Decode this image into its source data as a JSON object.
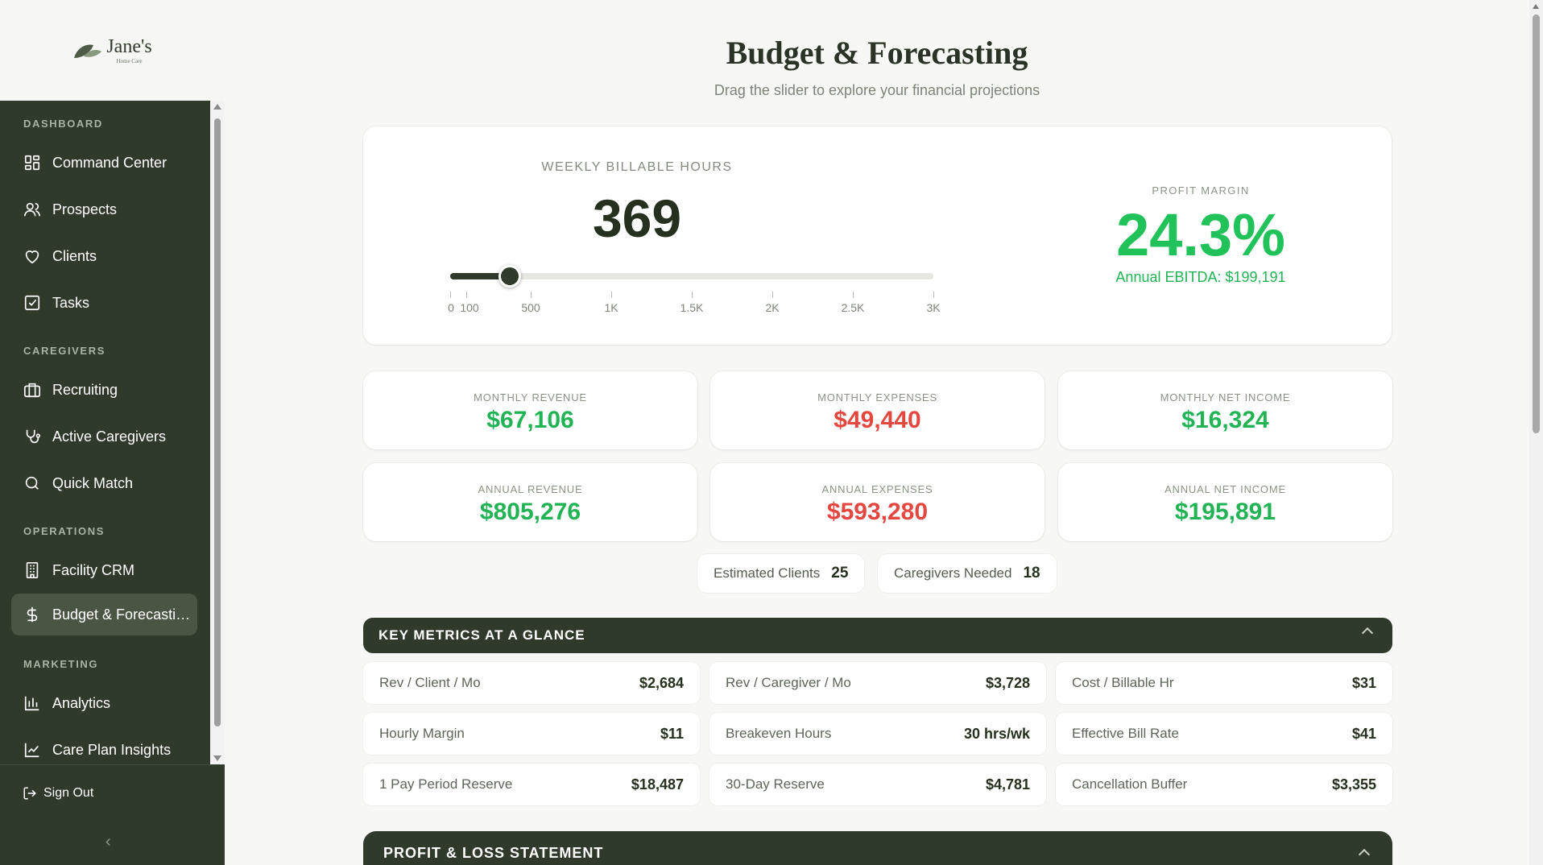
{
  "brand": {
    "name": "Jane's",
    "tagline": "Home Care"
  },
  "sidebar": {
    "sections": [
      {
        "title": "DASHBOARD",
        "items": [
          {
            "label": "Command Center",
            "icon": "grid-icon"
          },
          {
            "label": "Prospects",
            "icon": "users-icon"
          },
          {
            "label": "Clients",
            "icon": "heart-icon"
          },
          {
            "label": "Tasks",
            "icon": "checkbox-icon"
          }
        ]
      },
      {
        "title": "CAREGIVERS",
        "items": [
          {
            "label": "Recruiting",
            "icon": "briefcase-icon"
          },
          {
            "label": "Active Caregivers",
            "icon": "stethoscope-icon"
          },
          {
            "label": "Quick Match",
            "icon": "search-icon"
          }
        ]
      },
      {
        "title": "OPERATIONS",
        "items": [
          {
            "label": "Facility CRM",
            "icon": "building-icon"
          },
          {
            "label": "Budget & Forecasting",
            "icon": "dollar-icon",
            "active": true
          }
        ]
      },
      {
        "title": "MARKETING",
        "items": [
          {
            "label": "Analytics",
            "icon": "bar-chart-icon"
          },
          {
            "label": "Care Plan Insights",
            "icon": "line-chart-icon"
          }
        ]
      }
    ],
    "sign_out": "Sign Out",
    "collapse_glyph": "‹"
  },
  "page": {
    "title": "Budget & Forecasting",
    "subtitle": "Drag the slider to explore your financial projections"
  },
  "hero": {
    "label": "WEEKLY BILLABLE HOURS",
    "value": "369",
    "slider": {
      "min": 0,
      "max": 3000,
      "value": 369
    },
    "ticks": [
      "0",
      "100",
      "500",
      "1K",
      "1.5K",
      "2K",
      "2.5K",
      "3K"
    ],
    "tick_values": [
      0,
      100,
      500,
      1000,
      1500,
      2000,
      2500,
      3000
    ],
    "profit_margin_label": "PROFIT MARGIN",
    "profit_margin": "24.3%",
    "ebitda": "Annual EBITDA: $199,191"
  },
  "stats": [
    {
      "label": "MONTHLY REVENUE",
      "value": "$67,106",
      "tone": "green"
    },
    {
      "label": "MONTHLY EXPENSES",
      "value": "$49,440",
      "tone": "red"
    },
    {
      "label": "MONTHLY NET INCOME",
      "value": "$16,324",
      "tone": "green"
    },
    {
      "label": "ANNUAL REVENUE",
      "value": "$805,276",
      "tone": "green"
    },
    {
      "label": "ANNUAL EXPENSES",
      "value": "$593,280",
      "tone": "red"
    },
    {
      "label": "ANNUAL NET INCOME",
      "value": "$195,891",
      "tone": "green"
    }
  ],
  "pills": [
    {
      "label": "Estimated Clients",
      "value": "25"
    },
    {
      "label": "Caregivers Needed",
      "value": "18"
    }
  ],
  "key_metrics": {
    "title": "KEY METRICS AT A GLANCE",
    "items": [
      {
        "label": "Rev / Client / Mo",
        "value": "$2,684"
      },
      {
        "label": "Rev / Caregiver / Mo",
        "value": "$3,728"
      },
      {
        "label": "Cost / Billable Hr",
        "value": "$31"
      },
      {
        "label": "Hourly Margin",
        "value": "$11"
      },
      {
        "label": "Breakeven Hours",
        "value": "30 hrs/wk"
      },
      {
        "label": "Effective Bill Rate",
        "value": "$41"
      },
      {
        "label": "1 Pay Period Reserve",
        "value": "$18,487"
      },
      {
        "label": "30-Day Reserve",
        "value": "$4,781"
      },
      {
        "label": "Cancellation Buffer",
        "value": "$3,355"
      }
    ]
  },
  "pl": {
    "title": "PROFIT & LOSS STATEMENT"
  },
  "colors": {
    "sidebar": "#2f3a2a",
    "green": "#22b355",
    "red": "#e4473f"
  }
}
